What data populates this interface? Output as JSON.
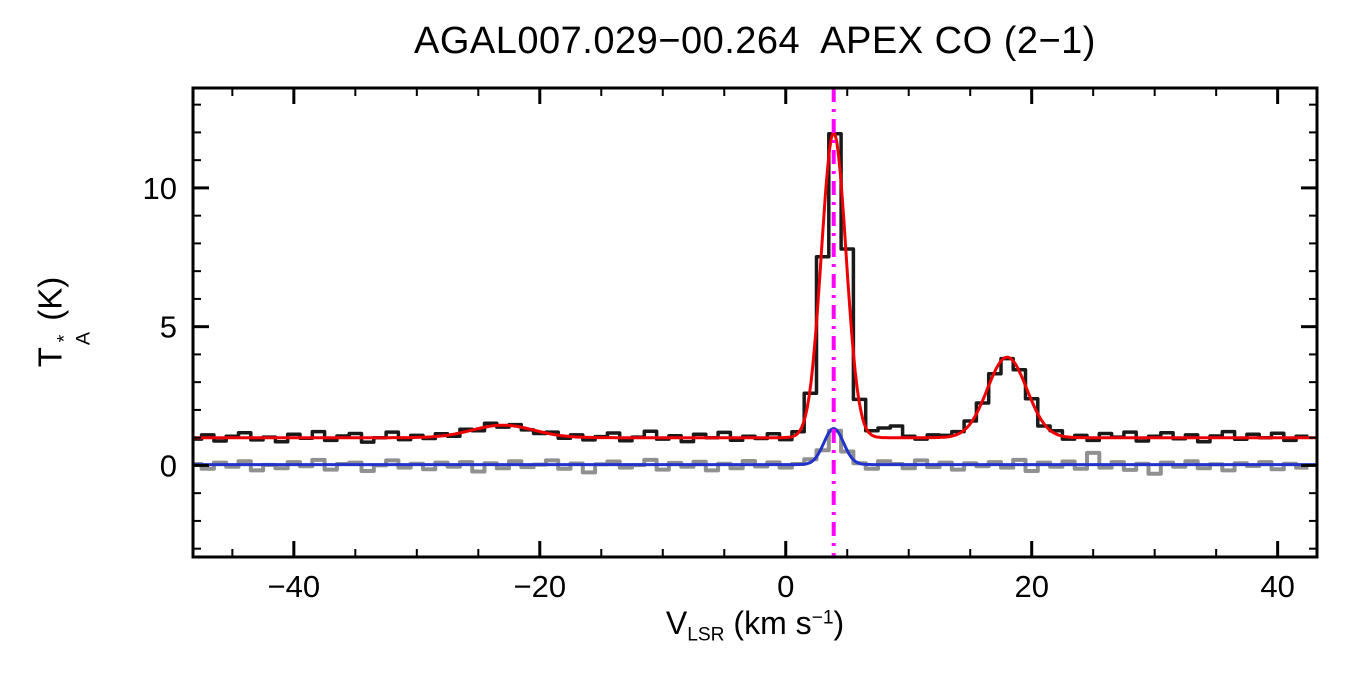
{
  "page": {
    "background": "#ffffff"
  },
  "chart_data": {
    "type": "line",
    "title": "AGAL007.029−00.264  APEX CO (2−1)",
    "title_color": "#000000",
    "xlabel": {
      "base": "V",
      "sub": "LSR",
      "unit_prefix": " (km s",
      "sup": "−1",
      "unit_suffix": ")",
      "text": "V_LSR (km s^-1)"
    },
    "ylabel": {
      "base": "T",
      "sup": "*",
      "sub": "A",
      "unit": " (K)",
      "text": "T_A^* (K)"
    },
    "xlim": [
      -48.2,
      43.2
    ],
    "ylim": [
      -3.3,
      13.6
    ],
    "grid": false,
    "legend": null,
    "x_ticks": [
      {
        "v": -40,
        "label": "−40"
      },
      {
        "v": -20,
        "label": "−20"
      },
      {
        "v": 0,
        "label": "0"
      },
      {
        "v": 20,
        "label": "20"
      },
      {
        "v": 40,
        "label": "40"
      }
    ],
    "x_minor_step": 5,
    "y_ticks": [
      {
        "v": 0,
        "label": "0"
      },
      {
        "v": 5,
        "label": "5"
      },
      {
        "v": 10,
        "label": "10"
      }
    ],
    "y_minor_step": 1,
    "vline": {
      "x": 3.9,
      "color": "#ff00ff",
      "style": "dash-dot",
      "name": "fitted-lsr-velocity-marker"
    },
    "series": [
      {
        "name": "residual",
        "style": "histogram",
        "color": "#909090",
        "x_start": -48,
        "x_step": 1.0,
        "values": [
          0.05,
          -0.12,
          0.1,
          -0.05,
          0.15,
          -0.18,
          0.02,
          -0.1,
          0.12,
          -0.03,
          0.2,
          -0.15,
          0.05,
          0.1,
          -0.2,
          0.0,
          0.18,
          -0.08,
          0.06,
          -0.14,
          0.1,
          -0.05,
          0.12,
          -0.22,
          0.08,
          -0.1,
          0.15,
          -0.06,
          0.03,
          0.18,
          -0.12,
          0.07,
          -0.25,
          0.04,
          0.14,
          -0.08,
          0.01,
          0.2,
          -0.15,
          0.09,
          -0.05,
          0.13,
          -0.18,
          0.06,
          -0.1,
          0.16,
          -0.04,
          0.11,
          -0.08,
          0.05,
          0.22,
          0.55,
          1.25,
          0.5,
          0.08,
          -0.12,
          0.15,
          0.05,
          -0.1,
          0.18,
          -0.06,
          0.1,
          -0.15,
          0.08,
          -0.03,
          0.12,
          -0.08,
          0.2,
          -0.2,
          0.1,
          -0.05,
          0.14,
          -0.12,
          0.45,
          -0.08,
          0.12,
          -0.16,
          0.06,
          -0.3,
          0.1,
          -0.05,
          0.15,
          -0.1,
          0.04,
          -0.18,
          0.08,
          -0.02,
          0.12,
          -0.14,
          0.06,
          -0.08
        ]
      },
      {
        "name": "residual-fit",
        "style": "line",
        "color": "#2233cc",
        "model": {
          "baseline": 0.03,
          "components": [
            {
              "amp": 1.3,
              "center": 3.9,
              "sigma": 0.8
            }
          ]
        }
      },
      {
        "name": "spectrum",
        "style": "histogram",
        "color": "#1a1a1a",
        "x_start": -48,
        "x_step": 1.0,
        "values": [
          0.95,
          1.1,
          0.88,
          1.05,
          1.18,
          0.92,
          1.02,
          0.85,
          1.12,
          0.98,
          1.22,
          0.9,
          1.06,
          1.15,
          0.84,
          1.0,
          1.2,
          0.93,
          1.08,
          0.97,
          1.14,
          1.05,
          1.3,
          1.25,
          1.52,
          1.38,
          1.47,
          1.28,
          1.15,
          1.2,
          0.98,
          1.1,
          0.92,
          1.04,
          1.17,
          0.89,
          1.02,
          1.23,
          0.95,
          1.07,
          0.86,
          1.12,
          1.0,
          1.19,
          0.91,
          1.05,
          0.97,
          1.14,
          0.93,
          1.21,
          2.6,
          7.52,
          11.95,
          7.8,
          2.38,
          1.25,
          1.35,
          1.42,
          1.05,
          0.95,
          1.1,
          1.08,
          1.22,
          1.6,
          2.25,
          3.3,
          3.85,
          3.45,
          2.4,
          1.42,
          1.25,
          0.95,
          1.08,
          0.9,
          1.15,
          1.02,
          1.2,
          0.88,
          1.05,
          1.18,
          0.96,
          1.1,
          0.85,
          1.06,
          1.22,
          0.94,
          1.12,
          1.0,
          1.16,
          0.9,
          1.05
        ]
      },
      {
        "name": "gaussian-fit",
        "style": "line",
        "color": "#ee0000",
        "model": {
          "baseline": 1.0,
          "components": [
            {
              "amp": 11.0,
              "center": 3.9,
              "sigma": 1.0
            },
            {
              "amp": 2.9,
              "center": 18.0,
              "sigma": 1.6
            },
            {
              "amp": 0.45,
              "center": -23.0,
              "sigma": 2.5
            }
          ]
        }
      }
    ]
  }
}
